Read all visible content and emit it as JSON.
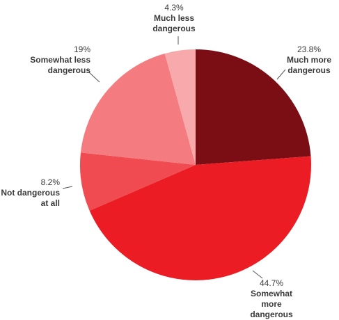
{
  "chart_data": {
    "type": "pie",
    "categories": [
      "Much more dangerous",
      "Somewhat more dangerous",
      "Not dangerous at all",
      "Somewhat less dangerous",
      "Much less dangerous"
    ],
    "values": [
      23.8,
      44.7,
      8.2,
      19,
      4.3
    ],
    "value_labels": [
      "23.8%",
      "44.7%",
      "8.2%",
      "19%",
      "4.3%"
    ],
    "colors": [
      "#7b0d15",
      "#ec1c24",
      "#f04b51",
      "#f47b7f",
      "#f7a9ac"
    ]
  }
}
